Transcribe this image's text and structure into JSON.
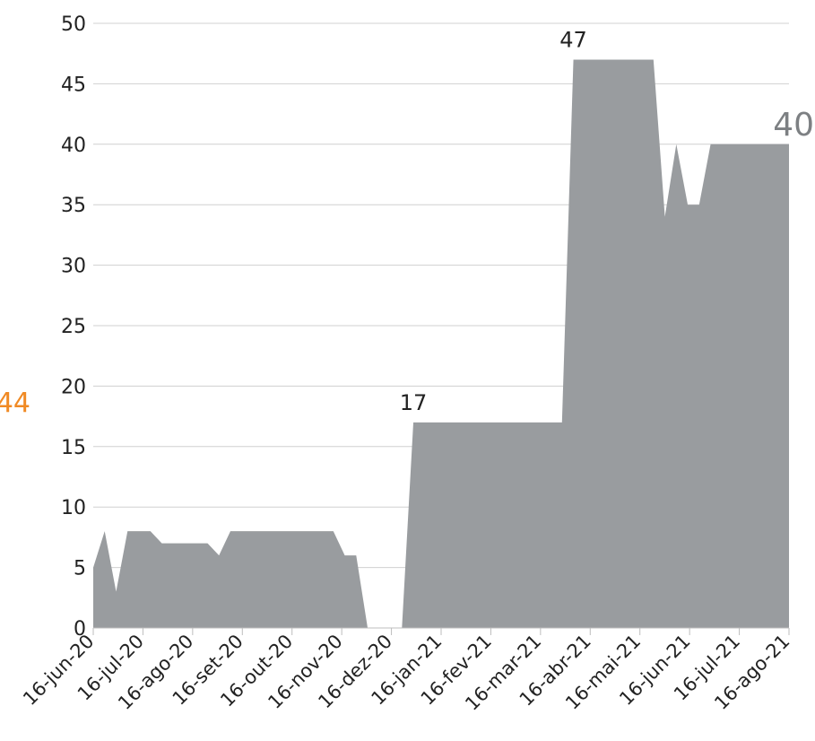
{
  "colors": {
    "area": "#999c9f",
    "grid": "#d0d0d0",
    "text": "#222222",
    "last_value": "#7d8083",
    "side_value": "#f08a24"
  },
  "chart_data": {
    "type": "area",
    "y_ticks": [
      "0",
      "5",
      "10",
      "15",
      "20",
      "25",
      "30",
      "35",
      "40",
      "45",
      "50"
    ],
    "ylim": [
      0,
      50
    ],
    "grid": true,
    "x_ticks": [
      "16-jun-20",
      "16-jul-20",
      "16-ago-20",
      "16-set-20",
      "16-out-20",
      "16-nov-20",
      "16-dez-20",
      "16-jan-21",
      "16-fev-21",
      "16-mar-21",
      "16-abr-21",
      "16-mai-21",
      "16-jun-21",
      "16-jul-21",
      "16-ago-21"
    ],
    "x_start": "2020-06-16",
    "x_end": "2021-08-16",
    "points": [
      [
        "2020-06-16",
        5
      ],
      [
        "2020-06-23",
        8
      ],
      [
        "2020-06-30",
        3
      ],
      [
        "2020-07-07",
        8
      ],
      [
        "2020-07-21",
        8
      ],
      [
        "2020-07-28",
        7
      ],
      [
        "2020-08-25",
        7
      ],
      [
        "2020-09-01",
        6
      ],
      [
        "2020-09-08",
        8
      ],
      [
        "2020-11-10",
        8
      ],
      [
        "2020-11-17",
        6
      ],
      [
        "2020-11-24",
        6
      ],
      [
        "2020-12-01",
        0
      ],
      [
        "2020-12-22",
        0
      ],
      [
        "2020-12-29",
        17
      ],
      [
        "2021-03-30",
        17
      ],
      [
        "2021-04-06",
        47
      ],
      [
        "2021-05-25",
        47
      ],
      [
        "2021-06-01",
        34
      ],
      [
        "2021-06-08",
        40
      ],
      [
        "2021-06-15",
        35
      ],
      [
        "2021-06-22",
        35
      ],
      [
        "2021-06-29",
        40
      ],
      [
        "2021-08-16",
        40
      ]
    ],
    "annotations": [
      {
        "text": "17",
        "x": "2020-12-29",
        "y": 17
      },
      {
        "text": "47",
        "x": "2021-04-06",
        "y": 47
      }
    ],
    "last_value_label": "40",
    "side_label": "44"
  }
}
